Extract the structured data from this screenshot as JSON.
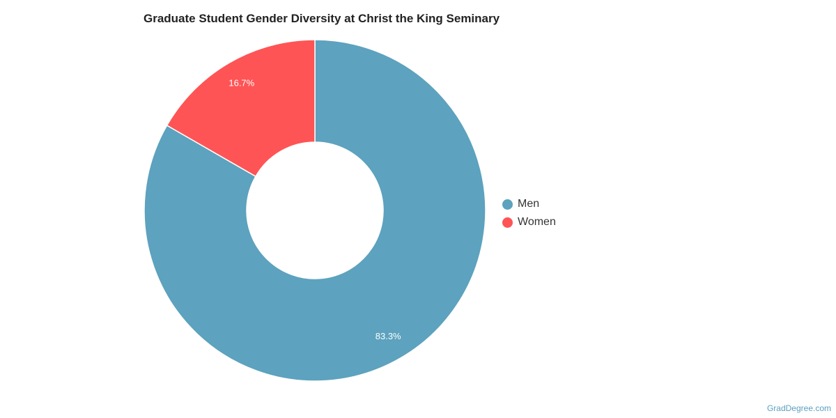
{
  "chart_data": {
    "type": "pie",
    "title": "Graduate Student Gender Diversity at Christ the King Seminary",
    "categories": [
      "Men",
      "Women"
    ],
    "values": [
      83.3,
      16.7
    ],
    "value_labels": [
      "83.3%",
      "16.7%"
    ],
    "colors": [
      "#5da2be",
      "#ff5455"
    ],
    "donut": true,
    "legend_position": "right"
  },
  "watermark": "GradDegree.com"
}
